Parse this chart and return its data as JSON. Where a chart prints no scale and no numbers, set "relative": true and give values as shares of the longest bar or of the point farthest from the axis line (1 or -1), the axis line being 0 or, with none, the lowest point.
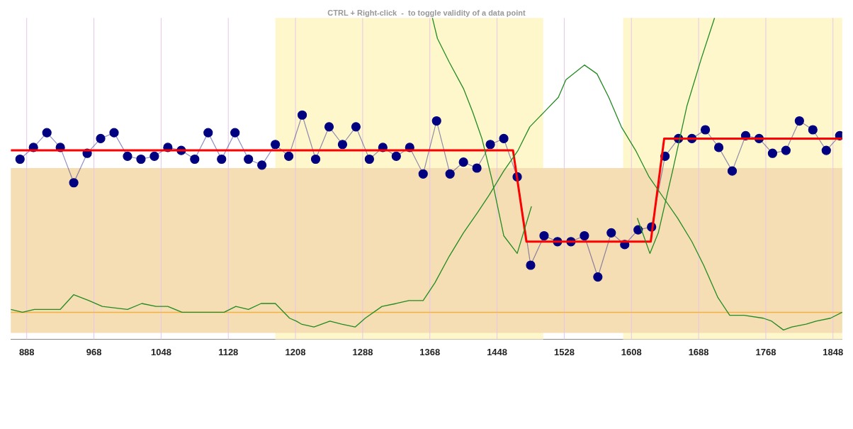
{
  "chart_data": {
    "type": "line",
    "relative": true,
    "subtitle": "CTRL + Right-click  -  to toggle validity of a data point",
    "xlim": [
      869,
      1859
    ],
    "xticks": [
      888,
      968,
      1048,
      1128,
      1208,
      1288,
      1368,
      1448,
      1528,
      1608,
      1688,
      1768,
      1848
    ],
    "grid": "x",
    "legend": false,
    "bands": [
      {
        "axis": "x",
        "from": 1184,
        "to": 1503,
        "color": "#fff7cc"
      },
      {
        "axis": "x",
        "from": 1598,
        "to": 1859,
        "color": "#fff7cc"
      },
      {
        "axis": "y",
        "from": -0.07,
        "to": 0.49,
        "color": "#f5deb3"
      }
    ],
    "ref_lines": [
      {
        "axis": "y",
        "value": 0,
        "color": "#f5b041"
      }
    ],
    "series": [
      {
        "color": "#228b22",
        "marker": "none",
        "x": [
          869,
          883,
          897,
          928,
          944,
          962,
          978,
          1008,
          1025,
          1042,
          1056,
          1073,
          1123,
          1137,
          1152,
          1167,
          1184,
          1201,
          1209,
          1215,
          1230,
          1249,
          1263,
          1279,
          1291,
          1311,
          1328,
          1343,
          1360,
          1374,
          1391,
          1408,
          1425,
          1439,
          1456,
          1473,
          1487,
          1504,
          1521,
          1530,
          1552,
          1567,
          1581,
          1596,
          1613,
          1629,
          1646,
          1663,
          1680,
          1694,
          1711,
          1725,
          1742,
          1765,
          1775,
          1789,
          1799,
          1816,
          1828,
          1845,
          1859
        ],
        "values": [
          0.01,
          0.0,
          0.01,
          0.01,
          0.06,
          0.04,
          0.02,
          0.01,
          0.03,
          0.02,
          0.02,
          0.0,
          0.0,
          0.02,
          0.01,
          0.03,
          0.03,
          -0.02,
          -0.03,
          -0.04,
          -0.05,
          -0.03,
          -0.04,
          -0.05,
          -0.02,
          0.02,
          0.03,
          0.04,
          0.04,
          0.1,
          0.19,
          0.27,
          0.34,
          0.4,
          0.48,
          0.55,
          0.63,
          0.68,
          0.73,
          0.79,
          0.84,
          0.81,
          0.73,
          0.63,
          0.55,
          0.46,
          0.39,
          0.32,
          0.24,
          0.16,
          0.05,
          -0.01,
          -0.01,
          -0.02,
          -0.03,
          -0.06,
          -0.05,
          -0.04,
          -0.03,
          -0.02,
          0.0
        ]
      },
      {
        "color": "#228b22",
        "marker": "none",
        "x": [
          1371,
          1377,
          1391,
          1408,
          1419,
          1430,
          1442,
          1456,
          1472,
          1489,
          1550,
          1615,
          1630,
          1640,
          1657,
          1674,
          1691,
          1707
        ],
        "values": [
          1.0,
          0.93,
          0.85,
          0.76,
          0.68,
          0.59,
          0.45,
          0.26,
          0.2,
          0.36,
          null,
          0.32,
          0.2,
          0.27,
          0.48,
          0.7,
          0.86,
          1.0
        ]
      },
      {
        "color": "#ff0000",
        "marker": "none",
        "x": [
          869,
          1467,
          1483,
          1631,
          1647,
          1859
        ],
        "values": [
          0.55,
          0.55,
          0.24,
          0.24,
          0.59,
          0.59
        ]
      },
      {
        "color": "#000080",
        "marker": "circle",
        "x": [
          880,
          896,
          912,
          928,
          944,
          960,
          976,
          992,
          1008,
          1024,
          1040,
          1056,
          1072,
          1088,
          1104,
          1120,
          1136,
          1152,
          1168,
          1184,
          1200,
          1216,
          1232,
          1248,
          1264,
          1280,
          1296,
          1312,
          1328,
          1344,
          1360,
          1376,
          1392,
          1408,
          1424,
          1440,
          1456,
          1472,
          1488,
          1504,
          1520,
          1536,
          1552,
          1568,
          1584,
          1600,
          1616,
          1632,
          1648,
          1664,
          1680,
          1696,
          1712,
          1728,
          1744,
          1760,
          1776,
          1792,
          1808,
          1824,
          1840,
          1856
        ],
        "values": [
          0.52,
          0.56,
          0.61,
          0.56,
          0.44,
          0.54,
          0.59,
          0.61,
          0.53,
          0.52,
          0.53,
          0.56,
          0.55,
          0.52,
          0.61,
          0.52,
          0.61,
          0.52,
          0.5,
          0.57,
          0.53,
          0.67,
          0.52,
          0.63,
          0.57,
          0.63,
          0.52,
          0.56,
          0.53,
          0.56,
          0.47,
          0.65,
          0.47,
          0.51,
          0.49,
          0.57,
          0.59,
          0.46,
          0.16,
          0.26,
          0.24,
          0.24,
          0.26,
          0.12,
          0.27,
          0.23,
          0.28,
          0.29,
          0.53,
          0.59,
          0.59,
          0.62,
          0.56,
          0.48,
          0.6,
          0.59,
          0.54,
          0.55,
          0.65,
          0.62,
          0.55,
          0.6
        ]
      }
    ]
  }
}
